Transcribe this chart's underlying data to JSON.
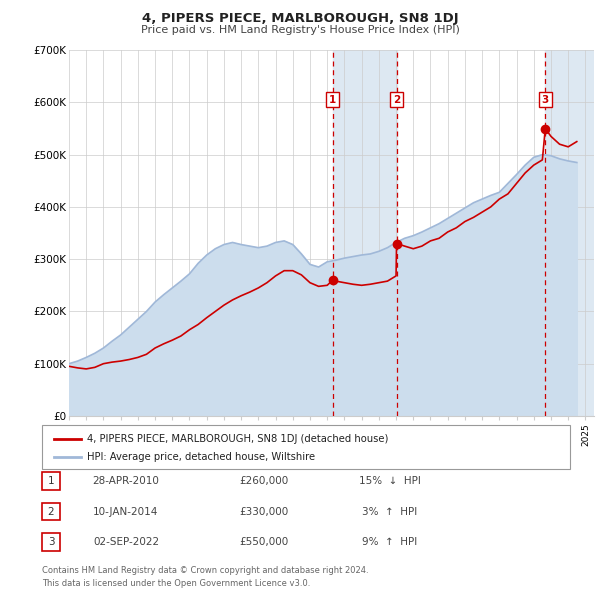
{
  "title": "4, PIPERS PIECE, MARLBOROUGH, SN8 1DJ",
  "subtitle": "Price paid vs. HM Land Registry's House Price Index (HPI)",
  "ylim": [
    0,
    700000
  ],
  "xlim": [
    1995,
    2025.5
  ],
  "yticks": [
    0,
    100000,
    200000,
    300000,
    400000,
    500000,
    600000,
    700000
  ],
  "ytick_labels": [
    "£0",
    "£100K",
    "£200K",
    "£300K",
    "£400K",
    "£500K",
    "£600K",
    "£700K"
  ],
  "sale_color": "#cc0000",
  "hpi_color": "#a0b8d8",
  "hpi_fill_color": "#ccdded",
  "vline_color": "#cc0000",
  "shade_color": "#dde8f2",
  "transactions": [
    {
      "label": "1",
      "date": "28-APR-2010",
      "year": 2010.32,
      "price": 260000,
      "pct": "15%",
      "direction": "↓",
      "vs": "HPI"
    },
    {
      "label": "2",
      "date": "10-JAN-2014",
      "year": 2014.03,
      "price": 330000,
      "pct": "3%",
      "direction": "↑",
      "vs": "HPI"
    },
    {
      "label": "3",
      "date": "02-SEP-2022",
      "year": 2022.67,
      "price": 550000,
      "pct": "9%",
      "direction": "↑",
      "vs": "HPI"
    }
  ],
  "legend_sale_label": "4, PIPERS PIECE, MARLBOROUGH, SN8 1DJ (detached house)",
  "legend_hpi_label": "HPI: Average price, detached house, Wiltshire",
  "footer": "Contains HM Land Registry data © Crown copyright and database right 2024.\nThis data is licensed under the Open Government Licence v3.0.",
  "sale_line": {
    "years": [
      1995.0,
      1995.5,
      1996.0,
      1996.5,
      1997.0,
      1997.5,
      1998.0,
      1998.5,
      1999.0,
      1999.5,
      2000.0,
      2000.5,
      2001.0,
      2001.5,
      2002.0,
      2002.5,
      2003.0,
      2003.5,
      2004.0,
      2004.5,
      2005.0,
      2005.5,
      2006.0,
      2006.5,
      2007.0,
      2007.5,
      2008.0,
      2008.5,
      2009.0,
      2009.5,
      2010.0,
      2010.32,
      2010.5,
      2011.0,
      2011.5,
      2012.0,
      2012.5,
      2013.0,
      2013.5,
      2014.0,
      2014.03,
      2014.5,
      2015.0,
      2015.5,
      2016.0,
      2016.5,
      2017.0,
      2017.5,
      2018.0,
      2018.5,
      2019.0,
      2019.5,
      2020.0,
      2020.5,
      2021.0,
      2021.5,
      2022.0,
      2022.5,
      2022.67,
      2023.0,
      2023.5,
      2024.0,
      2024.5
    ],
    "values": [
      95000,
      92000,
      90000,
      93000,
      100000,
      103000,
      105000,
      108000,
      112000,
      118000,
      130000,
      138000,
      145000,
      153000,
      165000,
      175000,
      188000,
      200000,
      212000,
      222000,
      230000,
      237000,
      245000,
      255000,
      268000,
      278000,
      278000,
      270000,
      255000,
      248000,
      250000,
      260000,
      258000,
      255000,
      252000,
      250000,
      252000,
      255000,
      258000,
      268000,
      330000,
      325000,
      320000,
      325000,
      335000,
      340000,
      352000,
      360000,
      372000,
      380000,
      390000,
      400000,
      415000,
      425000,
      445000,
      465000,
      480000,
      490000,
      550000,
      535000,
      520000,
      515000,
      525000
    ]
  },
  "hpi_line": {
    "years": [
      1995.0,
      1995.5,
      1996.0,
      1996.5,
      1997.0,
      1997.5,
      1998.0,
      1998.5,
      1999.0,
      1999.5,
      2000.0,
      2000.5,
      2001.0,
      2001.5,
      2002.0,
      2002.5,
      2003.0,
      2003.5,
      2004.0,
      2004.5,
      2005.0,
      2005.5,
      2006.0,
      2006.5,
      2007.0,
      2007.5,
      2008.0,
      2008.5,
      2009.0,
      2009.5,
      2010.0,
      2010.5,
      2011.0,
      2011.5,
      2012.0,
      2012.5,
      2013.0,
      2013.5,
      2014.0,
      2014.5,
      2015.0,
      2015.5,
      2016.0,
      2016.5,
      2017.0,
      2017.5,
      2018.0,
      2018.5,
      2019.0,
      2019.5,
      2020.0,
      2020.5,
      2021.0,
      2021.5,
      2022.0,
      2022.5,
      2023.0,
      2023.5,
      2024.0,
      2024.5
    ],
    "values": [
      100000,
      105000,
      112000,
      120000,
      130000,
      143000,
      155000,
      170000,
      185000,
      200000,
      218000,
      232000,
      245000,
      258000,
      272000,
      292000,
      308000,
      320000,
      328000,
      332000,
      328000,
      325000,
      322000,
      325000,
      332000,
      335000,
      328000,
      310000,
      290000,
      285000,
      295000,
      298000,
      302000,
      305000,
      308000,
      310000,
      315000,
      322000,
      332000,
      340000,
      345000,
      352000,
      360000,
      368000,
      378000,
      388000,
      398000,
      408000,
      415000,
      422000,
      428000,
      445000,
      462000,
      480000,
      495000,
      500000,
      498000,
      492000,
      488000,
      485000
    ]
  }
}
